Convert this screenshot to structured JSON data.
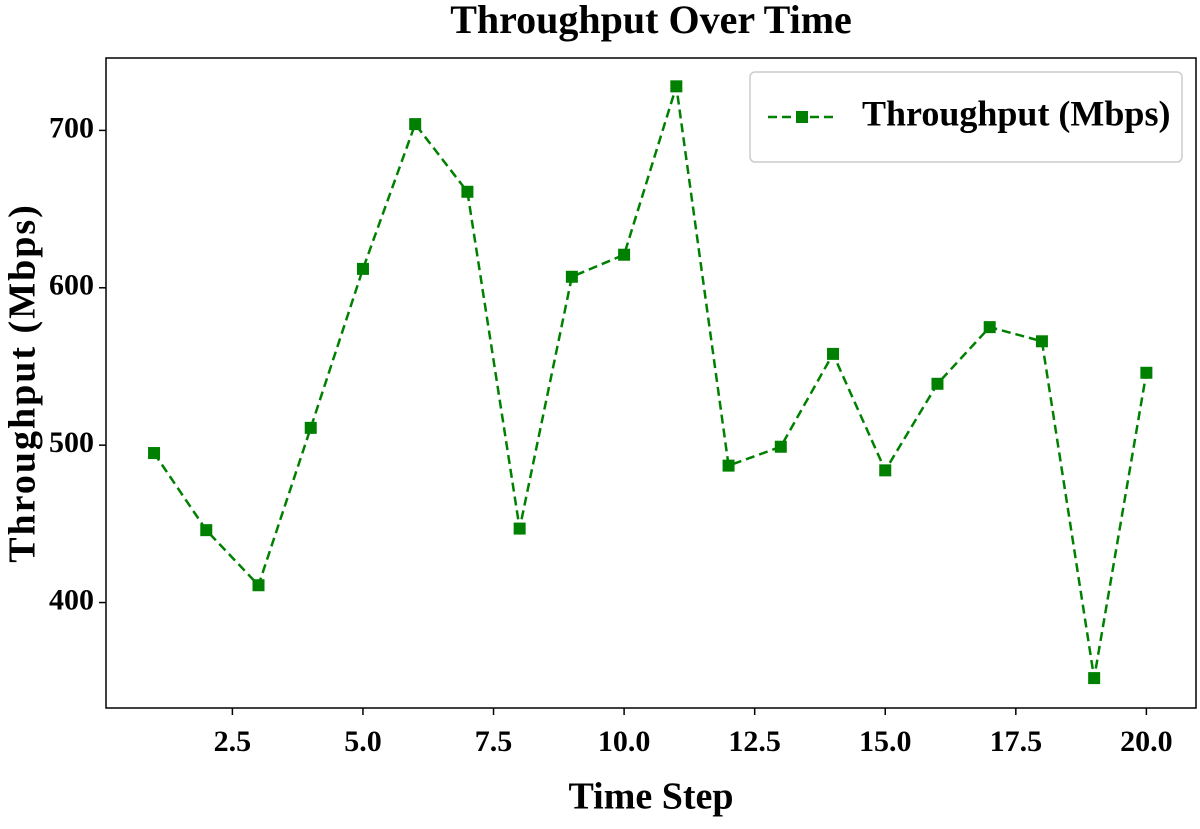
{
  "chart_data": {
    "type": "line",
    "title": "Throughput Over Time",
    "x_label": "Time Step",
    "y_label": "Throughput (Mbps)",
    "x": [
      1,
      2,
      3,
      4,
      5,
      6,
      7,
      8,
      9,
      10,
      11,
      12,
      13,
      14,
      15,
      16,
      17,
      18,
      19,
      20
    ],
    "series": [
      {
        "name": "Throughput (Mbps)",
        "color": "#008000",
        "values": [
          495,
          446,
          411,
          511,
          612,
          704,
          661,
          447,
          607,
          621,
          728,
          487,
          499,
          558,
          484,
          539,
          575,
          566,
          352,
          546
        ]
      }
    ],
    "xlim": [
      0.08,
      20.95
    ],
    "xticks": [
      {
        "value": 2.5,
        "label": "2.5"
      },
      {
        "value": 5.0,
        "label": "5.0"
      },
      {
        "value": 7.5,
        "label": "7.5"
      },
      {
        "value": 10.0,
        "label": "10.0"
      },
      {
        "value": 12.5,
        "label": "12.5"
      },
      {
        "value": 15.0,
        "label": "15.0"
      },
      {
        "value": 17.5,
        "label": "17.5"
      },
      {
        "value": 20.0,
        "label": "20.0"
      }
    ],
    "ylim": [
      333,
      746
    ],
    "yticks": [
      400,
      500,
      600,
      700
    ],
    "grid": false,
    "legend": "upper right",
    "line_style": "dashed",
    "marker": "square"
  }
}
